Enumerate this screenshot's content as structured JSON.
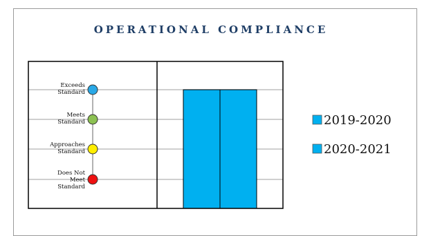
{
  "title": "OPERATIONAL COMPLIANCE",
  "colors": {
    "bar": "#00b0f0",
    "grid": "#bfbfbf",
    "title": "#1f3e66",
    "exceeds": "#29a8e6",
    "meets": "#8cc152",
    "approaches": "#ffee00",
    "does_not_meet": "#ee1111"
  },
  "levels": [
    {
      "lines": [
        "Exceeds",
        "Standard"
      ],
      "color": "exceeds",
      "icon": "blue-circle-icon"
    },
    {
      "lines": [
        "Meets",
        "Standard"
      ],
      "color": "meets",
      "icon": "green-circle-icon"
    },
    {
      "lines": [
        "Approaches",
        "Standard"
      ],
      "color": "approaches",
      "icon": "yellow-circle-icon"
    },
    {
      "lines": [
        "Does Not",
        "Meet",
        "Standard"
      ],
      "color": "does_not_meet",
      "icon": "red-circle-icon"
    }
  ],
  "chart_data": {
    "type": "bar",
    "title": "OPERATIONAL COMPLIANCE",
    "categories": [
      "Does Not Meet Standard",
      "Approaches Standard",
      "Meets Standard",
      "Exceeds Standard"
    ],
    "series": [
      {
        "name": "2019-2020",
        "value": "Exceeds Standard",
        "level": 4
      },
      {
        "name": "2020-2021",
        "value": "Exceeds Standard",
        "level": 4
      }
    ],
    "ylim": [
      0,
      4
    ],
    "grid": true,
    "legend_position": "right"
  }
}
